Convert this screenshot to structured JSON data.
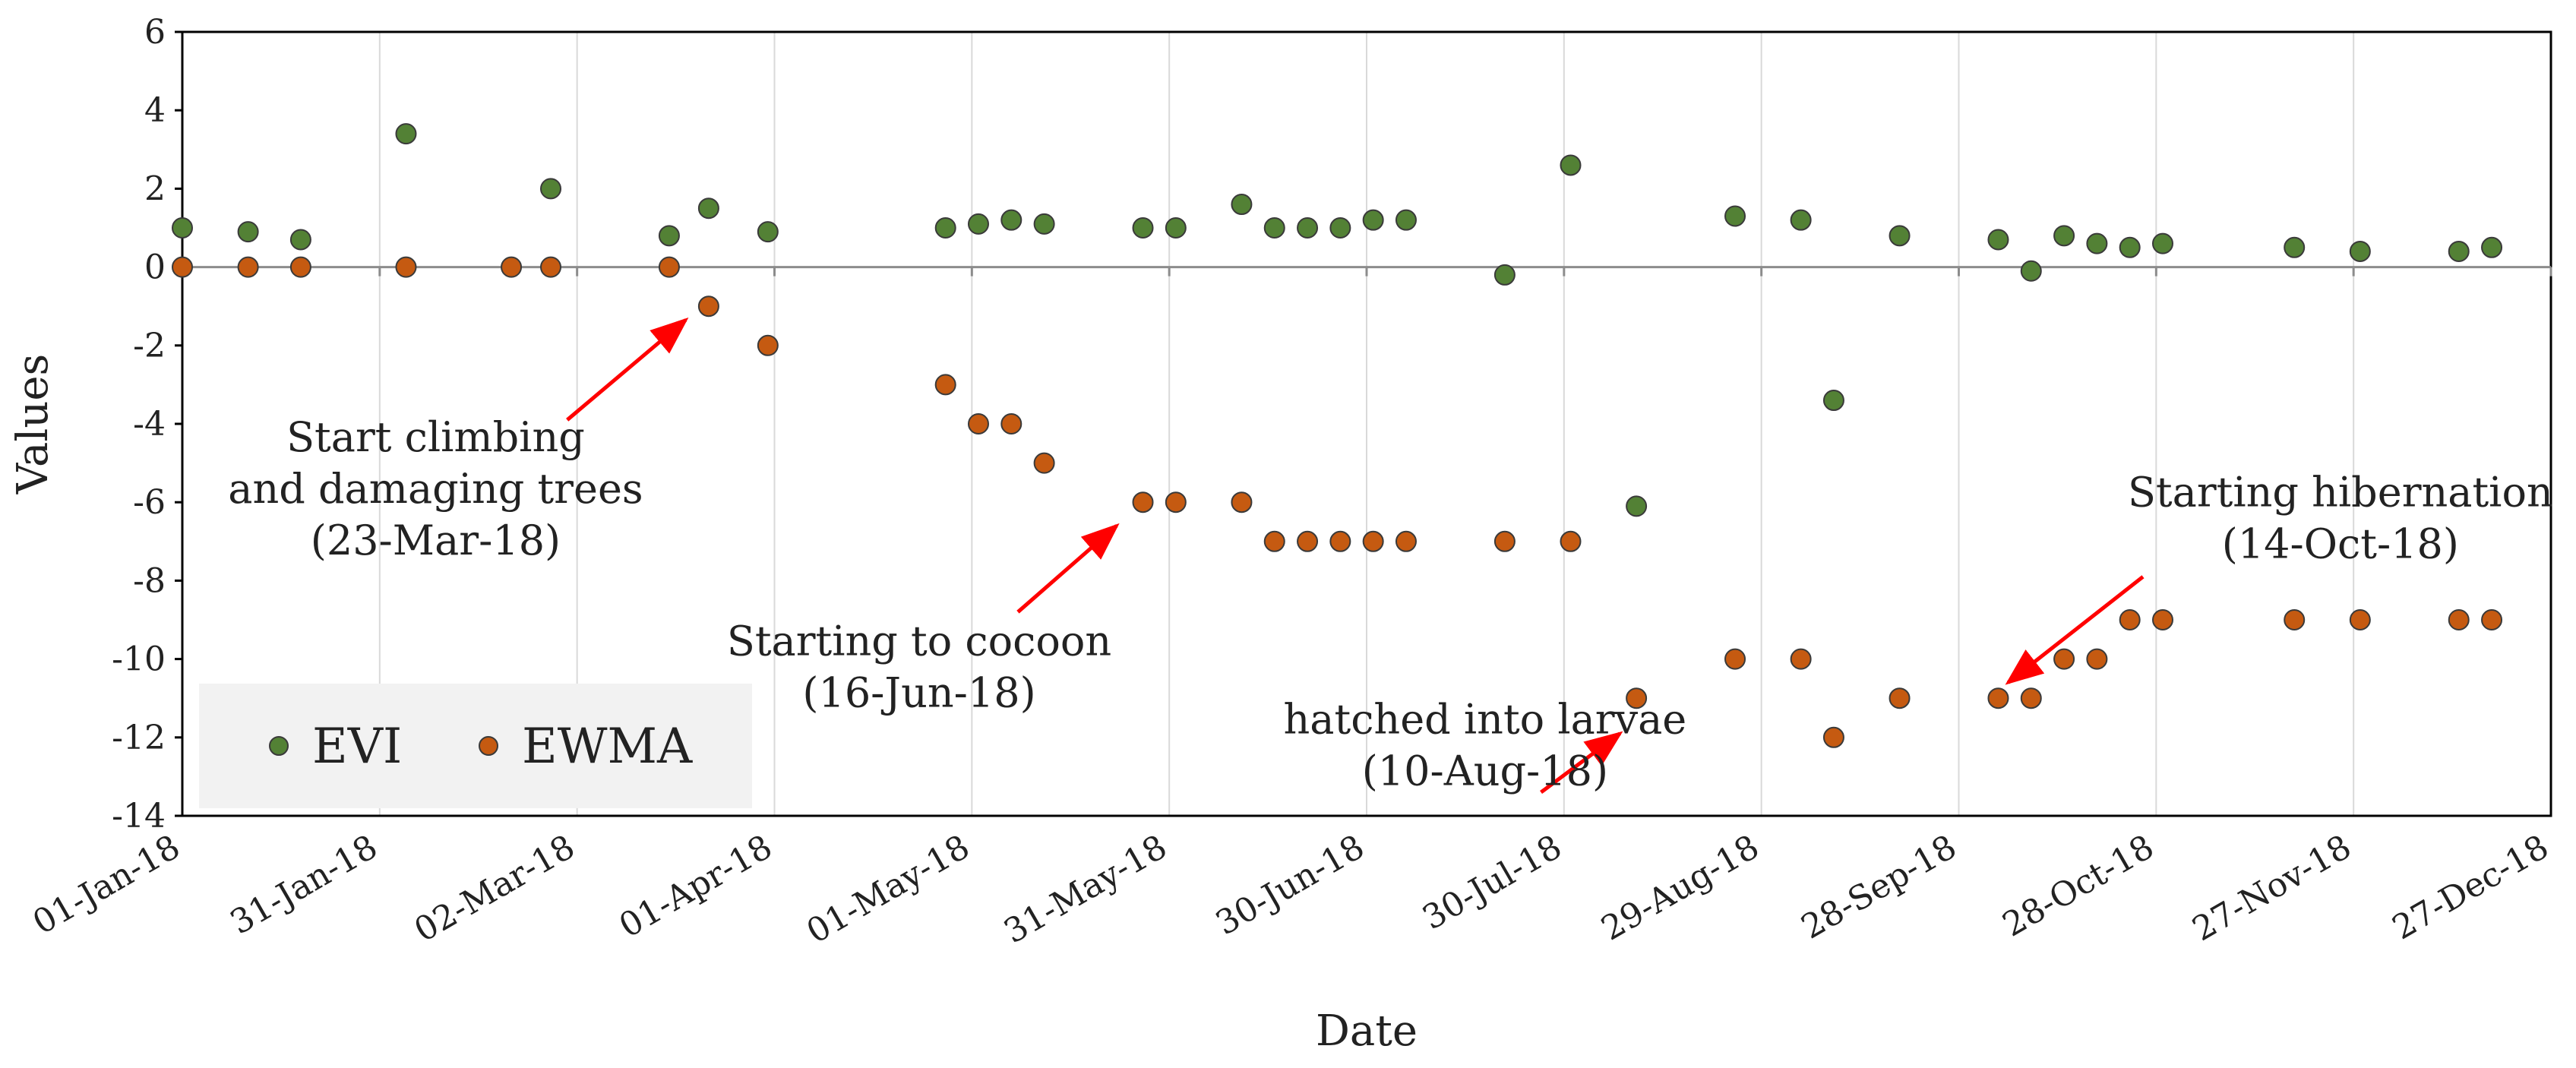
{
  "chart_data": {
    "type": "scatter",
    "title": "",
    "xlabel": "Date",
    "ylabel": "Values",
    "ylim": [
      -14,
      6
    ],
    "y_ticks": [
      6,
      4,
      2,
      0,
      -2,
      -4,
      -6,
      -8,
      -10,
      -12,
      -14
    ],
    "xlim_days": [
      0,
      360
    ],
    "x_tick_days": [
      0,
      30,
      60,
      90,
      120,
      150,
      180,
      210,
      240,
      270,
      300,
      330,
      360
    ],
    "x_tick_labels": [
      "01-Jan-18",
      "31-Jan-18",
      "02-Mar-18",
      "01-Apr-18",
      "01-May-18",
      "31-May-18",
      "30-Jun-18",
      "30-Jul-18",
      "29-Aug-18",
      "28-Sep-18",
      "28-Oct-18",
      "27-Nov-18",
      "27-Dec-18"
    ],
    "grid": "vertical",
    "legend_position": "bottom-left",
    "series": [
      {
        "name": "EVI",
        "color": "#538135",
        "points": [
          {
            "x": 0,
            "y": 1.0
          },
          {
            "x": 10,
            "y": 0.9
          },
          {
            "x": 18,
            "y": 0.7
          },
          {
            "x": 34,
            "y": 3.4
          },
          {
            "x": 56,
            "y": 2.0
          },
          {
            "x": 74,
            "y": 0.8
          },
          {
            "x": 80,
            "y": 1.5
          },
          {
            "x": 89,
            "y": 0.9
          },
          {
            "x": 116,
            "y": 1.0
          },
          {
            "x": 121,
            "y": 1.1
          },
          {
            "x": 126,
            "y": 1.2
          },
          {
            "x": 131,
            "y": 1.1
          },
          {
            "x": 146,
            "y": 1.0
          },
          {
            "x": 151,
            "y": 1.0
          },
          {
            "x": 161,
            "y": 1.6
          },
          {
            "x": 166,
            "y": 1.0
          },
          {
            "x": 171,
            "y": 1.0
          },
          {
            "x": 176,
            "y": 1.0
          },
          {
            "x": 181,
            "y": 1.2
          },
          {
            "x": 186,
            "y": 1.2
          },
          {
            "x": 201,
            "y": -0.2
          },
          {
            "x": 211,
            "y": 2.6
          },
          {
            "x": 221,
            "y": -6.1
          },
          {
            "x": 236,
            "y": 1.3
          },
          {
            "x": 246,
            "y": 1.2
          },
          {
            "x": 251,
            "y": -3.4
          },
          {
            "x": 261,
            "y": 0.8
          },
          {
            "x": 276,
            "y": 0.7
          },
          {
            "x": 281,
            "y": -0.1
          },
          {
            "x": 286,
            "y": 0.8
          },
          {
            "x": 291,
            "y": 0.6
          },
          {
            "x": 296,
            "y": 0.5
          },
          {
            "x": 301,
            "y": 0.6
          },
          {
            "x": 321,
            "y": 0.5
          },
          {
            "x": 331,
            "y": 0.4
          },
          {
            "x": 346,
            "y": 0.4
          },
          {
            "x": 351,
            "y": 0.5
          }
        ]
      },
      {
        "name": "EWMA",
        "color": "#C55A11",
        "points": [
          {
            "x": 0,
            "y": 0
          },
          {
            "x": 10,
            "y": 0
          },
          {
            "x": 18,
            "y": 0
          },
          {
            "x": 34,
            "y": 0
          },
          {
            "x": 50,
            "y": 0
          },
          {
            "x": 56,
            "y": 0
          },
          {
            "x": 74,
            "y": 0
          },
          {
            "x": 80,
            "y": -1
          },
          {
            "x": 89,
            "y": -2
          },
          {
            "x": 116,
            "y": -3
          },
          {
            "x": 121,
            "y": -4
          },
          {
            "x": 126,
            "y": -4
          },
          {
            "x": 131,
            "y": -5
          },
          {
            "x": 146,
            "y": -6
          },
          {
            "x": 151,
            "y": -6
          },
          {
            "x": 161,
            "y": -6
          },
          {
            "x": 166,
            "y": -7
          },
          {
            "x": 171,
            "y": -7
          },
          {
            "x": 176,
            "y": -7
          },
          {
            "x": 181,
            "y": -7
          },
          {
            "x": 186,
            "y": -7
          },
          {
            "x": 201,
            "y": -7
          },
          {
            "x": 211,
            "y": -7
          },
          {
            "x": 221,
            "y": -11
          },
          {
            "x": 236,
            "y": -10
          },
          {
            "x": 246,
            "y": -10
          },
          {
            "x": 251,
            "y": -12
          },
          {
            "x": 261,
            "y": -11
          },
          {
            "x": 276,
            "y": -11
          },
          {
            "x": 281,
            "y": -11
          },
          {
            "x": 286,
            "y": -10
          },
          {
            "x": 291,
            "y": -10
          },
          {
            "x": 296,
            "y": -9
          },
          {
            "x": 301,
            "y": -9
          },
          {
            "x": 321,
            "y": -9
          },
          {
            "x": 331,
            "y": -9
          },
          {
            "x": 346,
            "y": -9
          },
          {
            "x": 351,
            "y": -9
          }
        ]
      }
    ],
    "annotations": [
      {
        "name": "climbing",
        "lines": [
          "Start climbing",
          "and damaging trees",
          "(23-Mar-18)"
        ],
        "text_x": 38.5,
        "text_y": -4.7,
        "arrow_from": [
          58.5,
          -3.9
        ],
        "arrow_to": [
          76.5,
          -1.35
        ]
      },
      {
        "name": "cocoon",
        "lines": [
          "Starting to cocoon",
          "(16-Jun-18)"
        ],
        "text_x": 112,
        "text_y": -9.9,
        "arrow_from": [
          127,
          -8.8
        ],
        "arrow_to": [
          142,
          -6.6
        ]
      },
      {
        "name": "larvae",
        "lines": [
          "hatched into larvae",
          "(10-Aug-18)"
        ],
        "text_x": 198,
        "text_y": -11.9,
        "arrow_from": [
          206.5,
          -13.4
        ],
        "arrow_to": [
          218.5,
          -11.9
        ]
      },
      {
        "name": "hibernation",
        "lines": [
          "Starting hibernation",
          "(14-Oct-18)"
        ],
        "text_x": 328,
        "text_y": -6.1,
        "arrow_from": [
          298,
          -7.9
        ],
        "arrow_to": [
          277.5,
          -10.6
        ]
      }
    ]
  }
}
